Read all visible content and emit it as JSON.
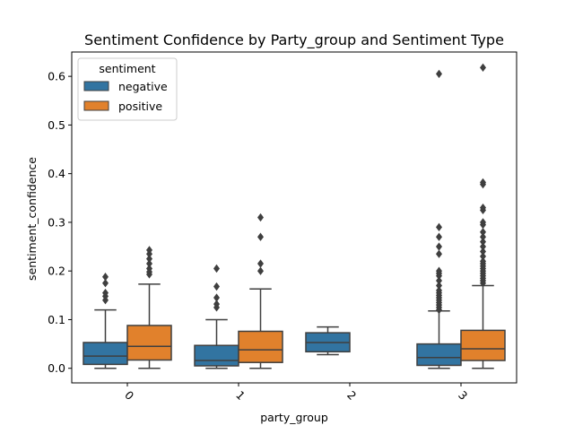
{
  "chart_data": {
    "type": "box",
    "title": "Sentiment Confidence by Party_group and Sentiment Type",
    "xlabel": "party_group",
    "ylabel": "sentiment_confidence",
    "categories": [
      "0",
      "1",
      "2",
      "3"
    ],
    "ylim": [
      -0.03,
      0.65
    ],
    "yticks": [
      0.0,
      0.1,
      0.2,
      0.3,
      0.4,
      0.5,
      0.6
    ],
    "ytick_labels": [
      "0.0",
      "0.1",
      "0.2",
      "0.3",
      "0.4",
      "0.5",
      "0.6"
    ],
    "xtick_rotation": "45 degrees",
    "grid": false,
    "legend": {
      "title": "sentiment",
      "position": "top-left"
    },
    "series": [
      {
        "name": "negative",
        "color": "#3274a1",
        "boxes": [
          {
            "category": "0",
            "whislo": 0.0,
            "q1": 0.008,
            "med": 0.025,
            "q3": 0.053,
            "whishi": 0.12,
            "fliers": [
              0.14,
              0.148,
              0.155,
              0.175,
              0.188
            ]
          },
          {
            "category": "1",
            "whislo": 0.0,
            "q1": 0.005,
            "med": 0.016,
            "q3": 0.047,
            "whishi": 0.1,
            "fliers": [
              0.125,
              0.132,
              0.145,
              0.168,
              0.205
            ]
          },
          {
            "category": "2",
            "whislo": 0.028,
            "q1": 0.034,
            "med": 0.053,
            "q3": 0.073,
            "whishi": 0.085,
            "fliers": []
          },
          {
            "category": "3",
            "whislo": 0.0,
            "q1": 0.006,
            "med": 0.022,
            "q3": 0.05,
            "whishi": 0.118,
            "fliers": [
              0.12,
              0.125,
              0.13,
              0.135,
              0.14,
              0.145,
              0.15,
              0.155,
              0.16,
              0.17,
              0.18,
              0.19,
              0.195,
              0.2,
              0.235,
              0.25,
              0.27,
              0.29,
              0.605
            ]
          }
        ]
      },
      {
        "name": "positive",
        "color": "#e1812c",
        "boxes": [
          {
            "category": "0",
            "whislo": 0.0,
            "q1": 0.017,
            "med": 0.045,
            "q3": 0.088,
            "whishi": 0.173,
            "fliers": [
              0.193,
              0.198,
              0.205,
              0.215,
              0.225,
              0.235,
              0.243
            ]
          },
          {
            "category": "1",
            "whislo": 0.0,
            "q1": 0.012,
            "med": 0.038,
            "q3": 0.076,
            "whishi": 0.163,
            "fliers": [
              0.2,
              0.215,
              0.27,
              0.31
            ]
          },
          {
            "category": "3",
            "whislo": 0.0,
            "q1": 0.016,
            "med": 0.04,
            "q3": 0.078,
            "whishi": 0.17,
            "fliers": [
              0.175,
              0.18,
              0.185,
              0.19,
              0.195,
              0.2,
              0.205,
              0.21,
              0.215,
              0.22,
              0.23,
              0.24,
              0.25,
              0.26,
              0.27,
              0.28,
              0.295,
              0.3,
              0.325,
              0.33,
              0.378,
              0.382,
              0.618
            ]
          }
        ]
      }
    ]
  }
}
